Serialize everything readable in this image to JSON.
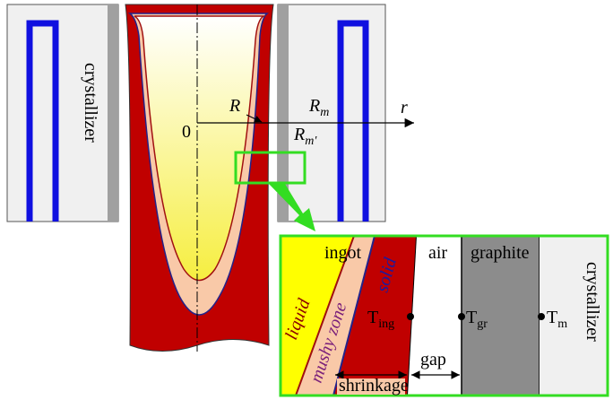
{
  "labels": {
    "crystallizer_left": "crystallizer",
    "radius": "R",
    "radius_mold": {
      "base": "R",
      "sub": "m"
    },
    "axis_r": "r",
    "origin": "0",
    "radius_mold_prime": {
      "base": "R",
      "sub": "m'"
    }
  },
  "detail": {
    "ingot": "ingot",
    "air": "air",
    "graphite": "graphite",
    "crystallizer": "crystallizer",
    "liquid": "liquid",
    "mushy_zone": "mushy zone",
    "solid": "solid",
    "t_ingot": {
      "base": "T",
      "sub": "ing"
    },
    "t_graphite": {
      "base": "T",
      "sub": "gr"
    },
    "t_mold": {
      "base": "T",
      "sub": "m"
    },
    "gap": "gap",
    "shrinkage": "shrinkage"
  }
}
